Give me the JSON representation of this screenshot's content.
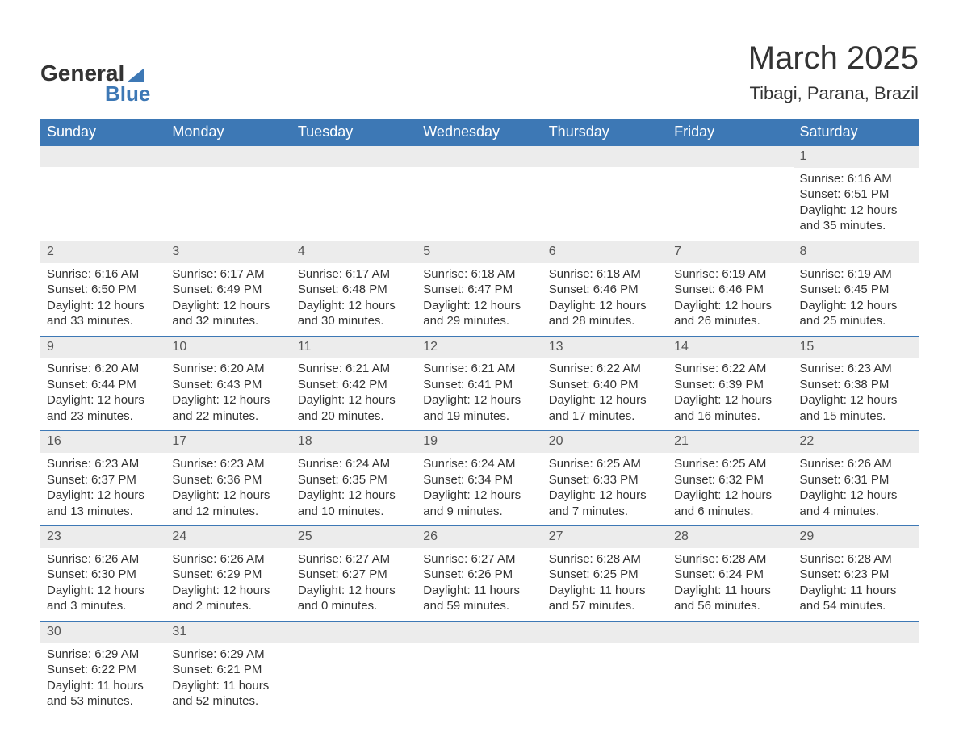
{
  "logo": {
    "general": "General",
    "blue": "Blue"
  },
  "title": "March 2025",
  "location": "Tibagi, Parana, Brazil",
  "colors": {
    "header_bg": "#3d78b5",
    "header_text": "#ffffff",
    "daynum_bg": "#ececec",
    "text": "#333333",
    "border": "#3d78b5"
  },
  "days_of_week": [
    "Sunday",
    "Monday",
    "Tuesday",
    "Wednesday",
    "Thursday",
    "Friday",
    "Saturday"
  ],
  "labels": {
    "sunrise": "Sunrise:",
    "sunset": "Sunset:",
    "daylight": "Daylight:"
  },
  "weeks": [
    [
      null,
      null,
      null,
      null,
      null,
      null,
      {
        "n": "1",
        "sr": "6:16 AM",
        "ss": "6:51 PM",
        "dl": "12 hours and 35 minutes."
      }
    ],
    [
      {
        "n": "2",
        "sr": "6:16 AM",
        "ss": "6:50 PM",
        "dl": "12 hours and 33 minutes."
      },
      {
        "n": "3",
        "sr": "6:17 AM",
        "ss": "6:49 PM",
        "dl": "12 hours and 32 minutes."
      },
      {
        "n": "4",
        "sr": "6:17 AM",
        "ss": "6:48 PM",
        "dl": "12 hours and 30 minutes."
      },
      {
        "n": "5",
        "sr": "6:18 AM",
        "ss": "6:47 PM",
        "dl": "12 hours and 29 minutes."
      },
      {
        "n": "6",
        "sr": "6:18 AM",
        "ss": "6:46 PM",
        "dl": "12 hours and 28 minutes."
      },
      {
        "n": "7",
        "sr": "6:19 AM",
        "ss": "6:46 PM",
        "dl": "12 hours and 26 minutes."
      },
      {
        "n": "8",
        "sr": "6:19 AM",
        "ss": "6:45 PM",
        "dl": "12 hours and 25 minutes."
      }
    ],
    [
      {
        "n": "9",
        "sr": "6:20 AM",
        "ss": "6:44 PM",
        "dl": "12 hours and 23 minutes."
      },
      {
        "n": "10",
        "sr": "6:20 AM",
        "ss": "6:43 PM",
        "dl": "12 hours and 22 minutes."
      },
      {
        "n": "11",
        "sr": "6:21 AM",
        "ss": "6:42 PM",
        "dl": "12 hours and 20 minutes."
      },
      {
        "n": "12",
        "sr": "6:21 AM",
        "ss": "6:41 PM",
        "dl": "12 hours and 19 minutes."
      },
      {
        "n": "13",
        "sr": "6:22 AM",
        "ss": "6:40 PM",
        "dl": "12 hours and 17 minutes."
      },
      {
        "n": "14",
        "sr": "6:22 AM",
        "ss": "6:39 PM",
        "dl": "12 hours and 16 minutes."
      },
      {
        "n": "15",
        "sr": "6:23 AM",
        "ss": "6:38 PM",
        "dl": "12 hours and 15 minutes."
      }
    ],
    [
      {
        "n": "16",
        "sr": "6:23 AM",
        "ss": "6:37 PM",
        "dl": "12 hours and 13 minutes."
      },
      {
        "n": "17",
        "sr": "6:23 AM",
        "ss": "6:36 PM",
        "dl": "12 hours and 12 minutes."
      },
      {
        "n": "18",
        "sr": "6:24 AM",
        "ss": "6:35 PM",
        "dl": "12 hours and 10 minutes."
      },
      {
        "n": "19",
        "sr": "6:24 AM",
        "ss": "6:34 PM",
        "dl": "12 hours and 9 minutes."
      },
      {
        "n": "20",
        "sr": "6:25 AM",
        "ss": "6:33 PM",
        "dl": "12 hours and 7 minutes."
      },
      {
        "n": "21",
        "sr": "6:25 AM",
        "ss": "6:32 PM",
        "dl": "12 hours and 6 minutes."
      },
      {
        "n": "22",
        "sr": "6:26 AM",
        "ss": "6:31 PM",
        "dl": "12 hours and 4 minutes."
      }
    ],
    [
      {
        "n": "23",
        "sr": "6:26 AM",
        "ss": "6:30 PM",
        "dl": "12 hours and 3 minutes."
      },
      {
        "n": "24",
        "sr": "6:26 AM",
        "ss": "6:29 PM",
        "dl": "12 hours and 2 minutes."
      },
      {
        "n": "25",
        "sr": "6:27 AM",
        "ss": "6:27 PM",
        "dl": "12 hours and 0 minutes."
      },
      {
        "n": "26",
        "sr": "6:27 AM",
        "ss": "6:26 PM",
        "dl": "11 hours and 59 minutes."
      },
      {
        "n": "27",
        "sr": "6:28 AM",
        "ss": "6:25 PM",
        "dl": "11 hours and 57 minutes."
      },
      {
        "n": "28",
        "sr": "6:28 AM",
        "ss": "6:24 PM",
        "dl": "11 hours and 56 minutes."
      },
      {
        "n": "29",
        "sr": "6:28 AM",
        "ss": "6:23 PM",
        "dl": "11 hours and 54 minutes."
      }
    ],
    [
      {
        "n": "30",
        "sr": "6:29 AM",
        "ss": "6:22 PM",
        "dl": "11 hours and 53 minutes."
      },
      {
        "n": "31",
        "sr": "6:29 AM",
        "ss": "6:21 PM",
        "dl": "11 hours and 52 minutes."
      },
      null,
      null,
      null,
      null,
      null
    ]
  ]
}
